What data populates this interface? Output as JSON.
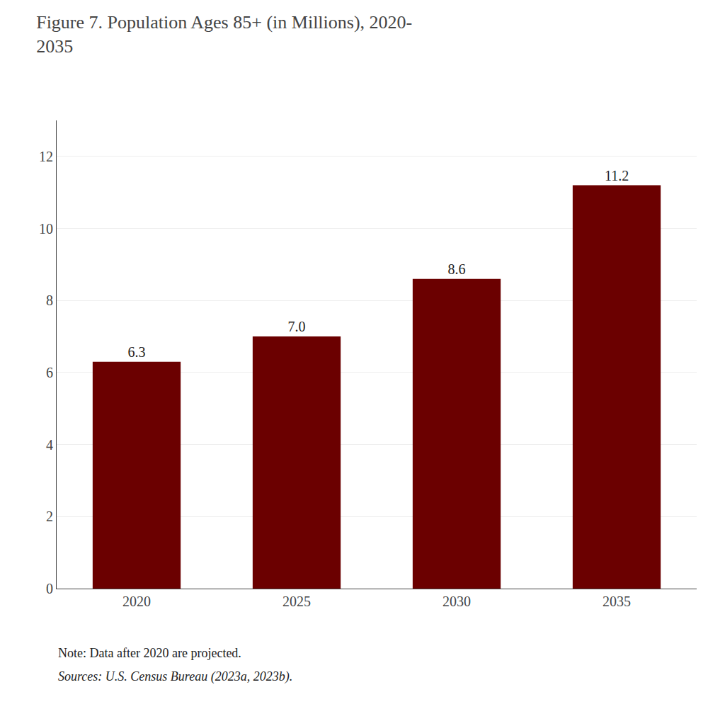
{
  "chart_data": {
    "type": "bar",
    "title": "Figure 7. Population Ages 85+ (in Millions), 2020-\n2035",
    "categories": [
      "2020",
      "2025",
      "2030",
      "2035"
    ],
    "values": [
      6.3,
      7.0,
      8.6,
      11.2
    ],
    "value_labels": [
      "6.3",
      "7.0",
      "8.6",
      "11.2"
    ],
    "data_labels": true,
    "color": "#6B0000",
    "ylim": [
      0,
      13
    ],
    "yticks": [
      0,
      2,
      4,
      6,
      8,
      10,
      12
    ],
    "grid": true,
    "annotations": [
      "Note: Data after 2020 are projected.",
      "Sources: U.S. Census Bureau (2023a, 2023b)."
    ]
  }
}
